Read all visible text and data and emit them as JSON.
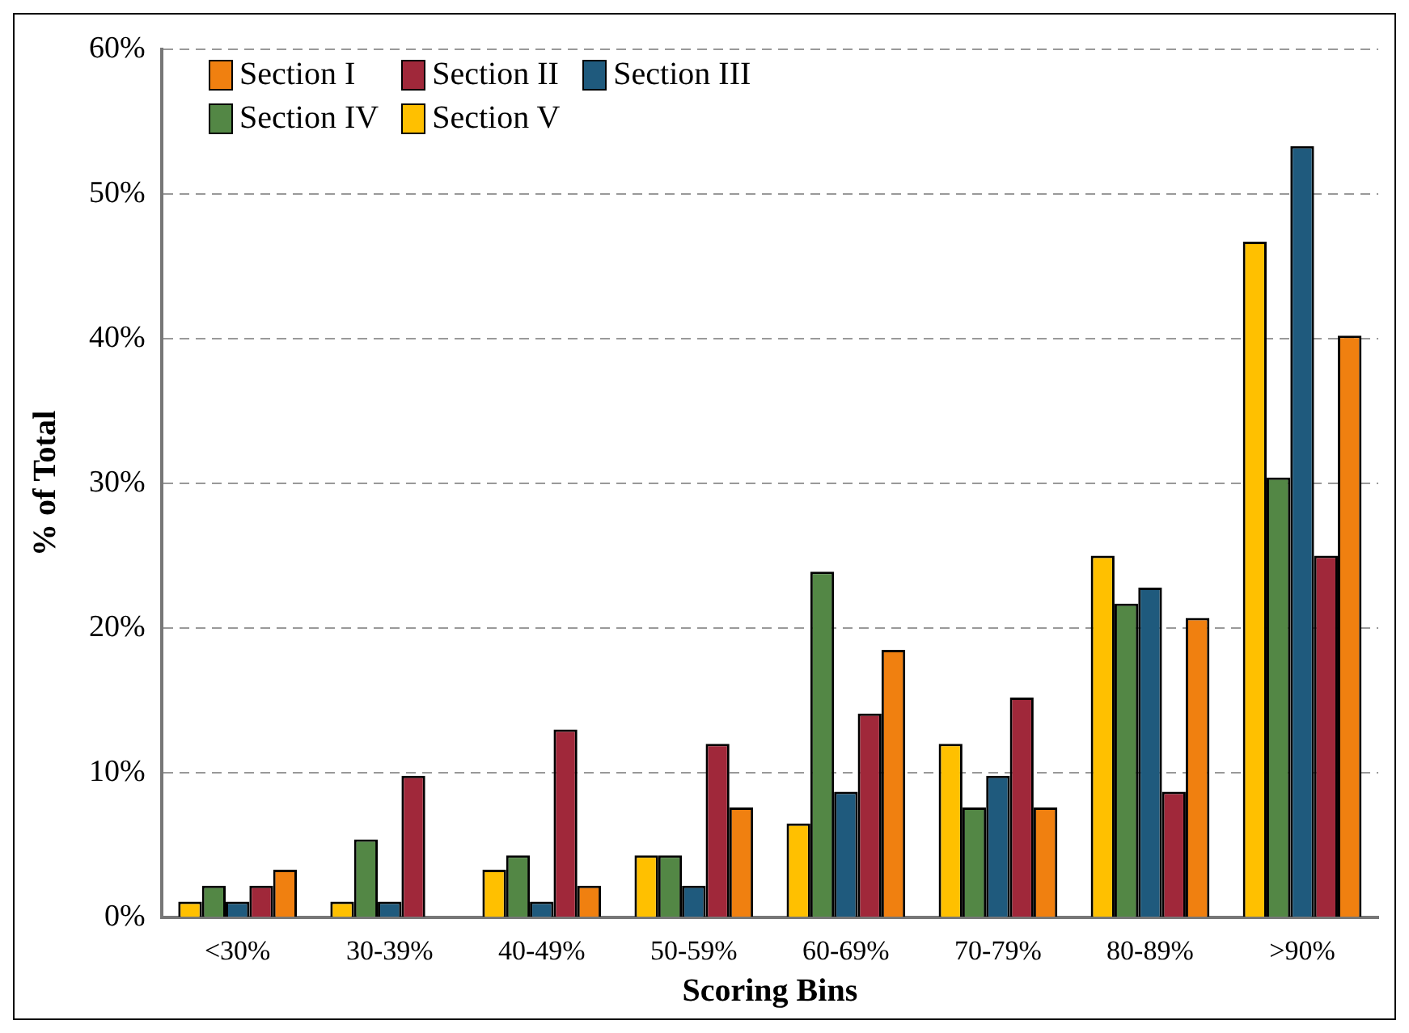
{
  "chart_data": {
    "type": "bar",
    "xlabel": "Scoring Bins",
    "ylabel": "% of Total",
    "categories": [
      "<30%",
      "30-39%",
      "40-49%",
      "50-59%",
      "60-69%",
      "70-79%",
      "80-89%",
      ">90%"
    ],
    "series": [
      {
        "name": "Section I",
        "color": "#f08010",
        "values": [
          3.3,
          0,
          2.2,
          7.6,
          18.5,
          7.6,
          20.7,
          40.2
        ]
      },
      {
        "name": "Section II",
        "color": "#a0283a",
        "values": [
          2.2,
          9.8,
          13.0,
          12.0,
          14.1,
          15.2,
          8.7,
          25.0
        ]
      },
      {
        "name": "Section III",
        "color": "#1f5a7d",
        "values": [
          1.1,
          1.1,
          1.1,
          2.2,
          8.7,
          9.8,
          22.8,
          53.3
        ]
      },
      {
        "name": "Section IV",
        "color": "#538745",
        "values": [
          2.2,
          5.4,
          4.3,
          4.3,
          23.9,
          7.6,
          21.7,
          30.4
        ]
      },
      {
        "name": "Section V",
        "color": "#ffc000",
        "values": [
          1.1,
          1.1,
          3.3,
          4.3,
          6.5,
          12.0,
          25.0,
          46.7
        ]
      }
    ],
    "ylim": [
      0,
      60
    ],
    "yticks": [
      {
        "value": 0,
        "label": "0%"
      },
      {
        "value": 10,
        "label": "10%"
      },
      {
        "value": 20,
        "label": "20%"
      },
      {
        "value": 30,
        "label": "30%"
      },
      {
        "value": 40,
        "label": "40%"
      },
      {
        "value": 50,
        "label": "50%"
      },
      {
        "value": 60,
        "label": "60%"
      }
    ],
    "grid": "y",
    "legend": "top left"
  }
}
